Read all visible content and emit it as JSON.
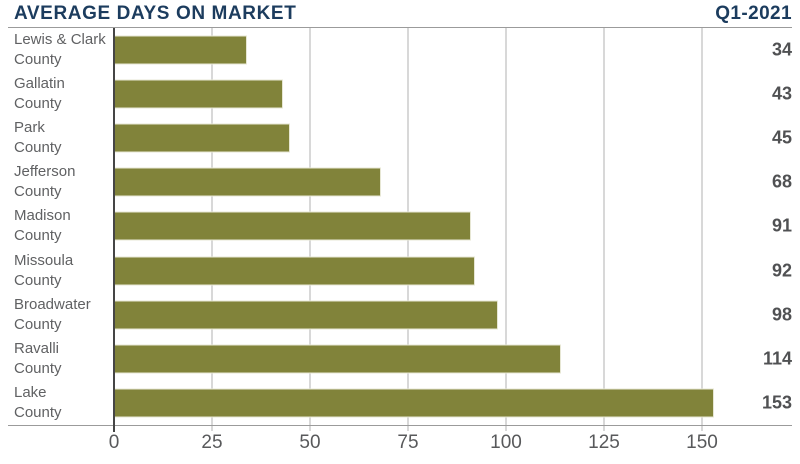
{
  "header": {
    "title": "AVERAGE DAYS ON MARKET",
    "period": "Q1-2021"
  },
  "chart_data": {
    "type": "bar",
    "orientation": "horizontal",
    "title": "AVERAGE DAYS ON MARKET",
    "period": "Q1-2021",
    "categories": [
      "Lewis & Clark County",
      "Gallatin County",
      "Park County",
      "Jefferson County",
      "Madison County",
      "Missoula County",
      "Broadwater County",
      "Ravalli County",
      "Lake County"
    ],
    "values": [
      34,
      43,
      45,
      68,
      91,
      92,
      98,
      114,
      153
    ],
    "value_labels_shown": true,
    "value_label_position": "right-margin",
    "xticks": [
      0,
      25,
      50,
      75,
      100,
      125,
      150
    ],
    "xlim": [
      0,
      172
    ],
    "grid": true,
    "legend": "none",
    "colors": {
      "background": "#FFFFFF",
      "title": "#1C3C5E",
      "bar": "#81833A",
      "bar_border": "#E7E7D4",
      "category_label": "#606163",
      "value_label": "#505153",
      "tick_label": "#58595B",
      "gridline": "#D8D8D8",
      "axis_line": "#9B9B9B",
      "zero_line": "#454545"
    }
  }
}
